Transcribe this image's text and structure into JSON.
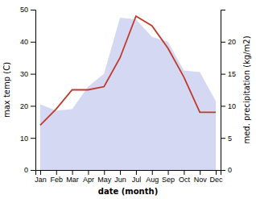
{
  "chart_data": {
    "type": "line",
    "categories": [
      "Jan",
      "Feb",
      "Mar",
      "Apr",
      "May",
      "Jun",
      "Jul",
      "Aug",
      "Sep",
      "Oct",
      "Nov",
      "Dec"
    ],
    "series": [
      {
        "type": "area",
        "color": "#b0b8e8",
        "values": [
          20.5,
          18.5,
          19.0,
          26.0,
          30.0,
          47.5,
          47.0,
          41.5,
          40.0,
          31.0,
          30.5,
          21.5
        ]
      },
      {
        "type": "line",
        "color": "#c0392b",
        "axis": "y2",
        "values": [
          7.0,
          9.5,
          12.5,
          12.5,
          13.0,
          17.5,
          24.0,
          22.5,
          19.0,
          14.5,
          9.0,
          9.0
        ]
      }
    ],
    "xlabel": "date (month)",
    "ylabel": "max temp (C)",
    "y2label": "med. precipitation (kg/m2)",
    "ylim": [
      0,
      50
    ],
    "yticks": [
      0,
      10,
      20,
      30,
      40,
      50
    ],
    "y2lim": [
      0,
      25
    ],
    "y2ticks": [
      0,
      5,
      10,
      15,
      20
    ],
    "grid": false
  }
}
